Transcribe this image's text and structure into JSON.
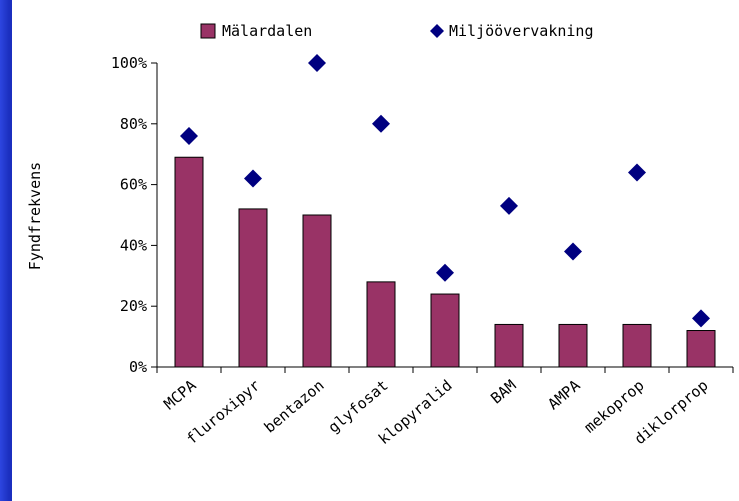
{
  "colors": {
    "bar": "#993366",
    "marker": "#000080",
    "frame": "#1f33c8",
    "background": "#ffffff"
  },
  "chart_data": {
    "type": "bar",
    "title": "",
    "ylabel": "Fyndfrekvens",
    "xlabel": "",
    "ylim": [
      0,
      100
    ],
    "yticks": [
      0,
      20,
      40,
      60,
      80,
      100
    ],
    "ytick_labels": [
      "0%",
      "20%",
      "40%",
      "60%",
      "80%",
      "100%"
    ],
    "legend_position": "top",
    "categories": [
      "MCPA",
      "fluroxipyr",
      "bentazon",
      "glyfosat",
      "klopyralid",
      "BAM",
      "AMPA",
      "mekoprop",
      "diklorprop"
    ],
    "series": [
      {
        "name": "Mälardalen",
        "kind": "bar",
        "values": [
          69,
          52,
          50,
          28,
          24,
          14,
          14,
          14,
          12
        ]
      },
      {
        "name": "Miljöövervakning",
        "kind": "marker",
        "values": [
          76,
          62,
          100,
          80,
          31,
          53,
          38,
          64,
          16
        ]
      }
    ]
  }
}
